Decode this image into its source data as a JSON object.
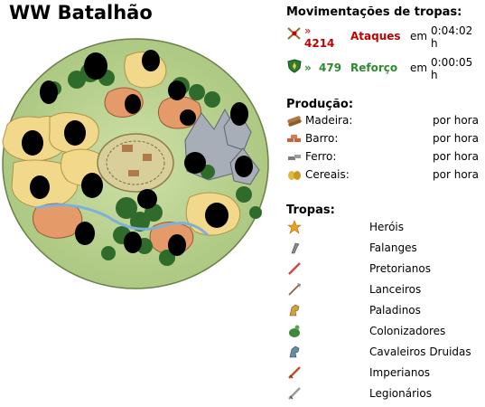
{
  "village": {
    "title": "WW Batalhão"
  },
  "movements": {
    "heading": "Movimentações de tropas:",
    "items": [
      {
        "icon": "crossed-swords-icon",
        "arrow": "»",
        "count": "4214",
        "label": "Ataques",
        "in": "em",
        "time": "0:04:02",
        "unit": "h",
        "color": "#c00000"
      },
      {
        "icon": "shield-icon",
        "arrow": "»",
        "count": "479",
        "label": "Reforço",
        "in": "em",
        "time": "0:00:05",
        "unit": "h",
        "color": "#2e8b2e"
      }
    ]
  },
  "production": {
    "heading": "Produção:",
    "items": [
      {
        "icon": "wood-icon",
        "label": "Madeira:",
        "rate": "por hora"
      },
      {
        "icon": "clay-icon",
        "label": "Barro:",
        "rate": "por hora"
      },
      {
        "icon": "iron-icon",
        "label": "Ferro:",
        "rate": "por hora"
      },
      {
        "icon": "crop-icon",
        "label": "Cereais:",
        "rate": "por hora"
      }
    ]
  },
  "troops": {
    "heading": "Tropas:",
    "items": [
      {
        "icon": "hero-star-icon",
        "label": "Heróis"
      },
      {
        "icon": "phalanx-icon",
        "label": "Falanges"
      },
      {
        "icon": "praetorian-icon",
        "label": "Pretorianos"
      },
      {
        "icon": "lancer-icon",
        "label": "Lanceiros"
      },
      {
        "icon": "paladin-icon",
        "label": "Paladinos"
      },
      {
        "icon": "settler-icon",
        "label": "Colonizadores"
      },
      {
        "icon": "druid-rider-icon",
        "label": "Cavaleiros Druidas"
      },
      {
        "icon": "imperian-icon",
        "label": "Imperianos"
      },
      {
        "icon": "legionnaire-icon",
        "label": "Legionários"
      }
    ]
  }
}
